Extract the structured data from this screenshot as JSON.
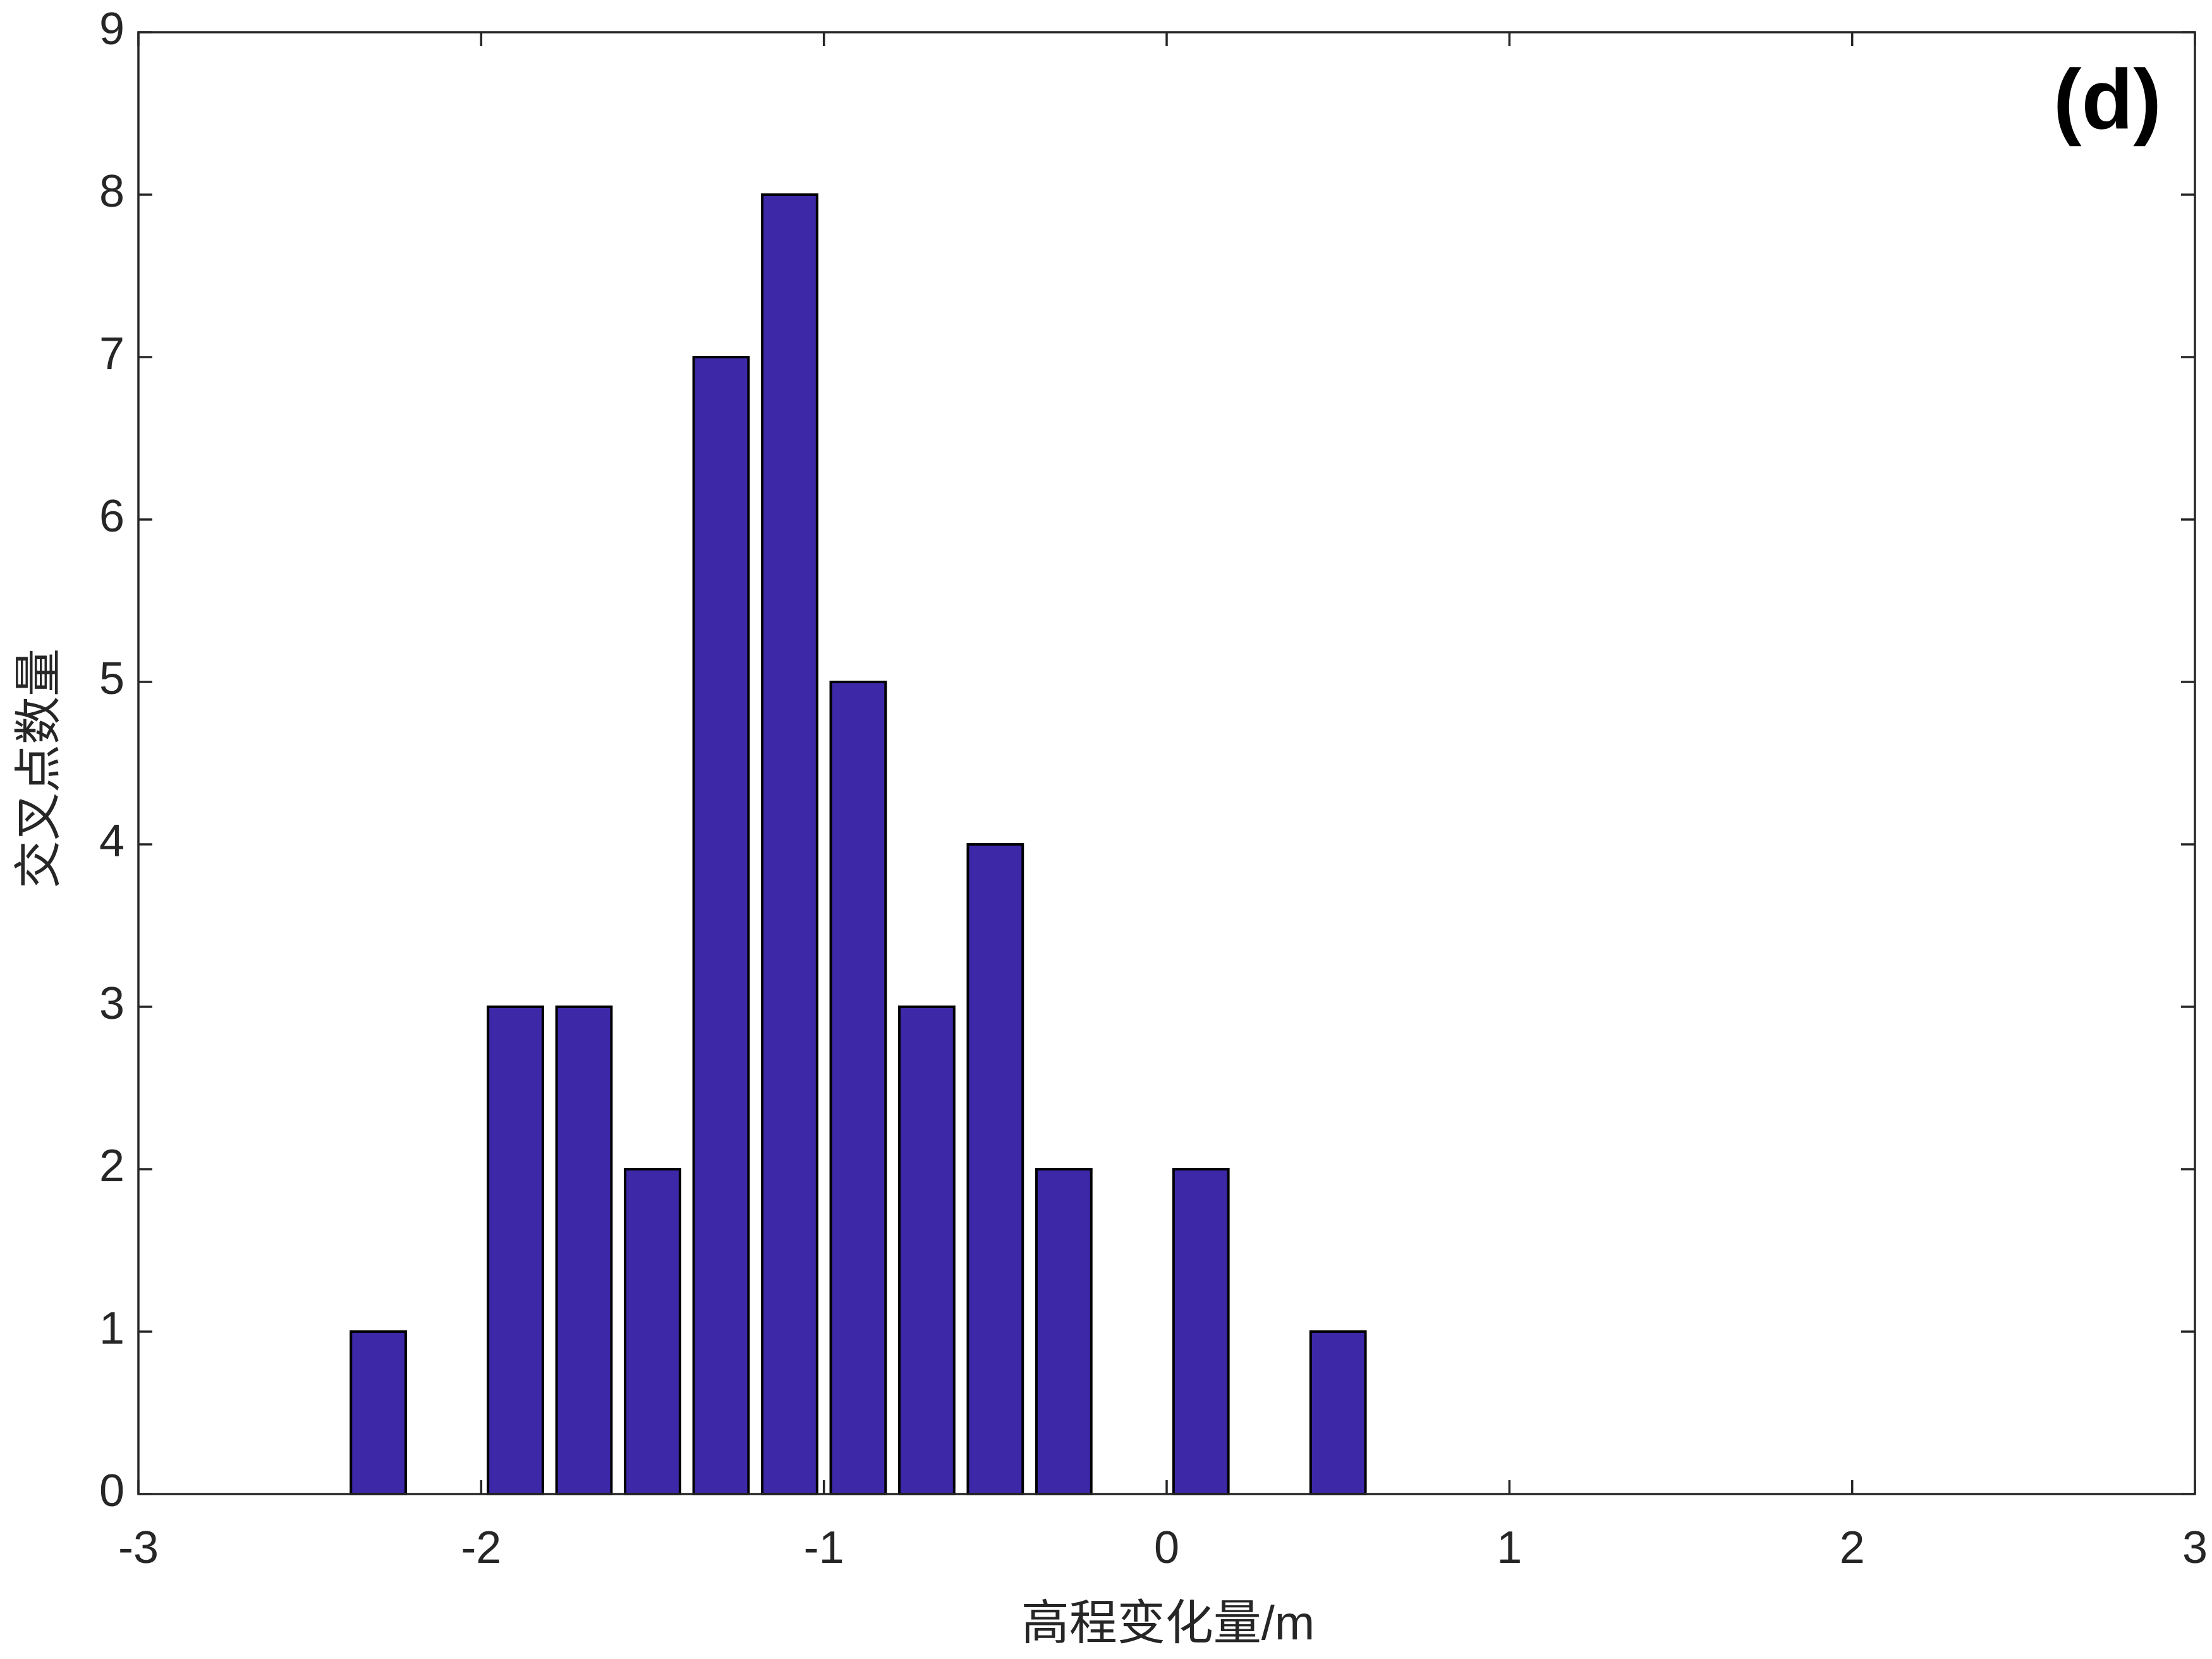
{
  "chart_data": {
    "type": "bar",
    "annotation": "(d)",
    "xlabel": "高程变化量/m",
    "ylabel": "交叉点数量",
    "x": [
      -2.3,
      -1.9,
      -1.7,
      -1.5,
      -1.3,
      -1.1,
      -0.9,
      -0.7,
      -0.5,
      -0.3,
      0.1,
      0.5
    ],
    "values": [
      1,
      3,
      3,
      2,
      7,
      8,
      5,
      3,
      4,
      2,
      2,
      1
    ],
    "color": "#3d28a8",
    "xlim": [
      -3,
      3
    ],
    "xticks": [
      -3,
      -2,
      -1,
      0,
      1,
      2,
      3
    ],
    "ylim": [
      0,
      9
    ],
    "yticks": [
      0,
      1,
      2,
      3,
      4,
      5,
      6,
      7,
      8,
      9
    ],
    "grid": false
  }
}
